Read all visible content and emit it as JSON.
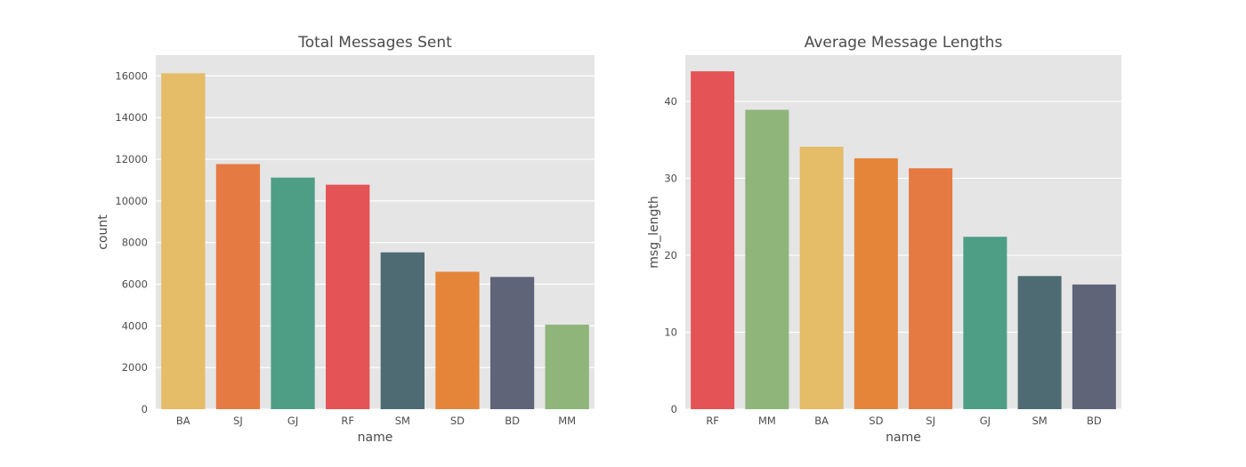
{
  "chart_data": [
    {
      "type": "bar",
      "title": "Total Messages Sent",
      "xlabel": "name",
      "ylabel": "count",
      "ylim": [
        0,
        17000
      ],
      "yticks": [
        0,
        2000,
        4000,
        6000,
        8000,
        10000,
        12000,
        14000,
        16000
      ],
      "categories": [
        "BA",
        "SJ",
        "GJ",
        "RF",
        "SM",
        "SD",
        "BD",
        "MM"
      ],
      "values": [
        16130,
        11770,
        11120,
        10780,
        7530,
        6600,
        6350,
        4060
      ],
      "colors": [
        "#e5bc67",
        "#e57a43",
        "#4e9e86",
        "#e45355",
        "#4e6b74",
        "#e5853a",
        "#5f6479",
        "#8fb57b"
      ],
      "grid": true
    },
    {
      "type": "bar",
      "title": "Average Message Lengths",
      "xlabel": "name",
      "ylabel": "msg_length",
      "ylim": [
        0,
        46
      ],
      "yticks": [
        0,
        10,
        20,
        30,
        40
      ],
      "categories": [
        "RF",
        "MM",
        "BA",
        "SD",
        "SJ",
        "GJ",
        "SM",
        "BD"
      ],
      "values": [
        43.9,
        38.9,
        34.1,
        32.6,
        31.3,
        22.4,
        17.3,
        16.2
      ],
      "colors": [
        "#e45355",
        "#8fb57b",
        "#e5bc67",
        "#e5853a",
        "#e57a43",
        "#4e9e86",
        "#4e6b74",
        "#5f6479"
      ],
      "grid": true
    }
  ]
}
